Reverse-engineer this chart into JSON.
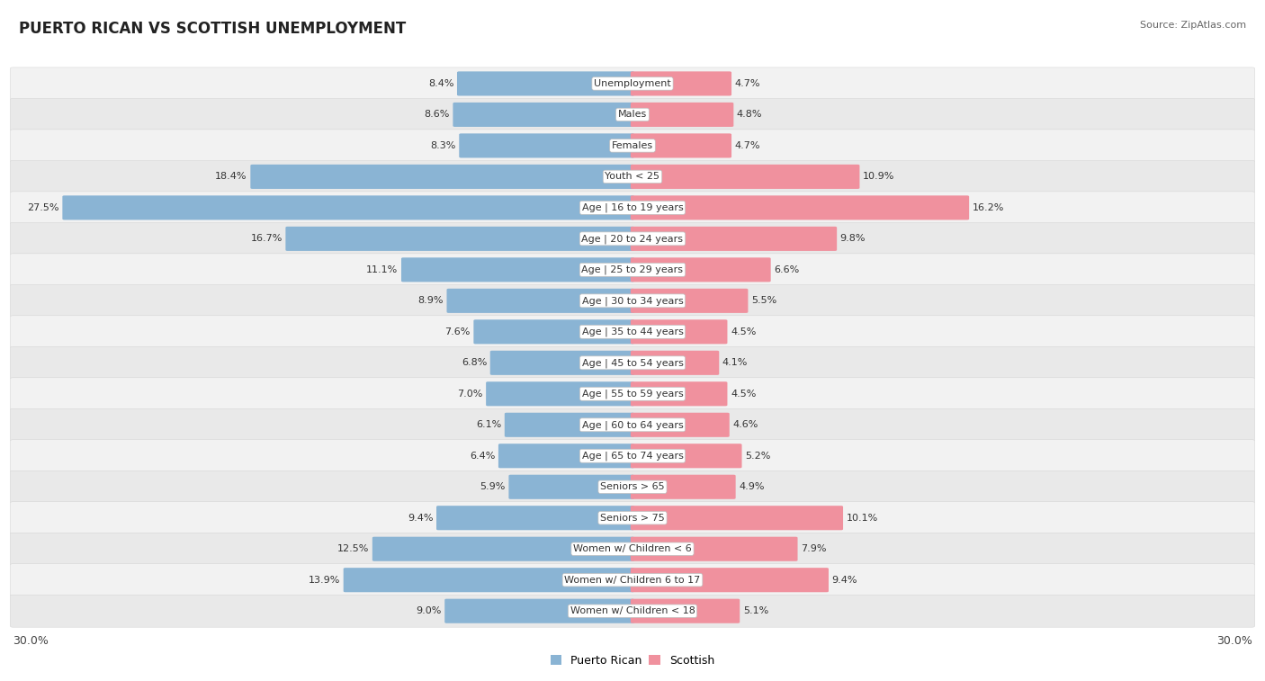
{
  "title": "PUERTO RICAN VS SCOTTISH UNEMPLOYMENT",
  "source": "Source: ZipAtlas.com",
  "categories": [
    "Unemployment",
    "Males",
    "Females",
    "Youth < 25",
    "Age | 16 to 19 years",
    "Age | 20 to 24 years",
    "Age | 25 to 29 years",
    "Age | 30 to 34 years",
    "Age | 35 to 44 years",
    "Age | 45 to 54 years",
    "Age | 55 to 59 years",
    "Age | 60 to 64 years",
    "Age | 65 to 74 years",
    "Seniors > 65",
    "Seniors > 75",
    "Women w/ Children < 6",
    "Women w/ Children 6 to 17",
    "Women w/ Children < 18"
  ],
  "puerto_rican": [
    8.4,
    8.6,
    8.3,
    18.4,
    27.5,
    16.7,
    11.1,
    8.9,
    7.6,
    6.8,
    7.0,
    6.1,
    6.4,
    5.9,
    9.4,
    12.5,
    13.9,
    9.0
  ],
  "scottish": [
    4.7,
    4.8,
    4.7,
    10.9,
    16.2,
    9.8,
    6.6,
    5.5,
    4.5,
    4.1,
    4.5,
    4.6,
    5.2,
    4.9,
    10.1,
    7.9,
    9.4,
    5.1
  ],
  "puerto_rican_color": "#8ab4d4",
  "scottish_color": "#f0919e",
  "max_value": 30.0,
  "legend_pr": "Puerto Rican",
  "legend_sc": "Scottish",
  "axis_label_left": "30.0%",
  "axis_label_right": "30.0%",
  "background_color": "#ffffff",
  "title_fontsize": 12,
  "source_fontsize": 8,
  "value_fontsize": 8,
  "category_fontsize": 8
}
